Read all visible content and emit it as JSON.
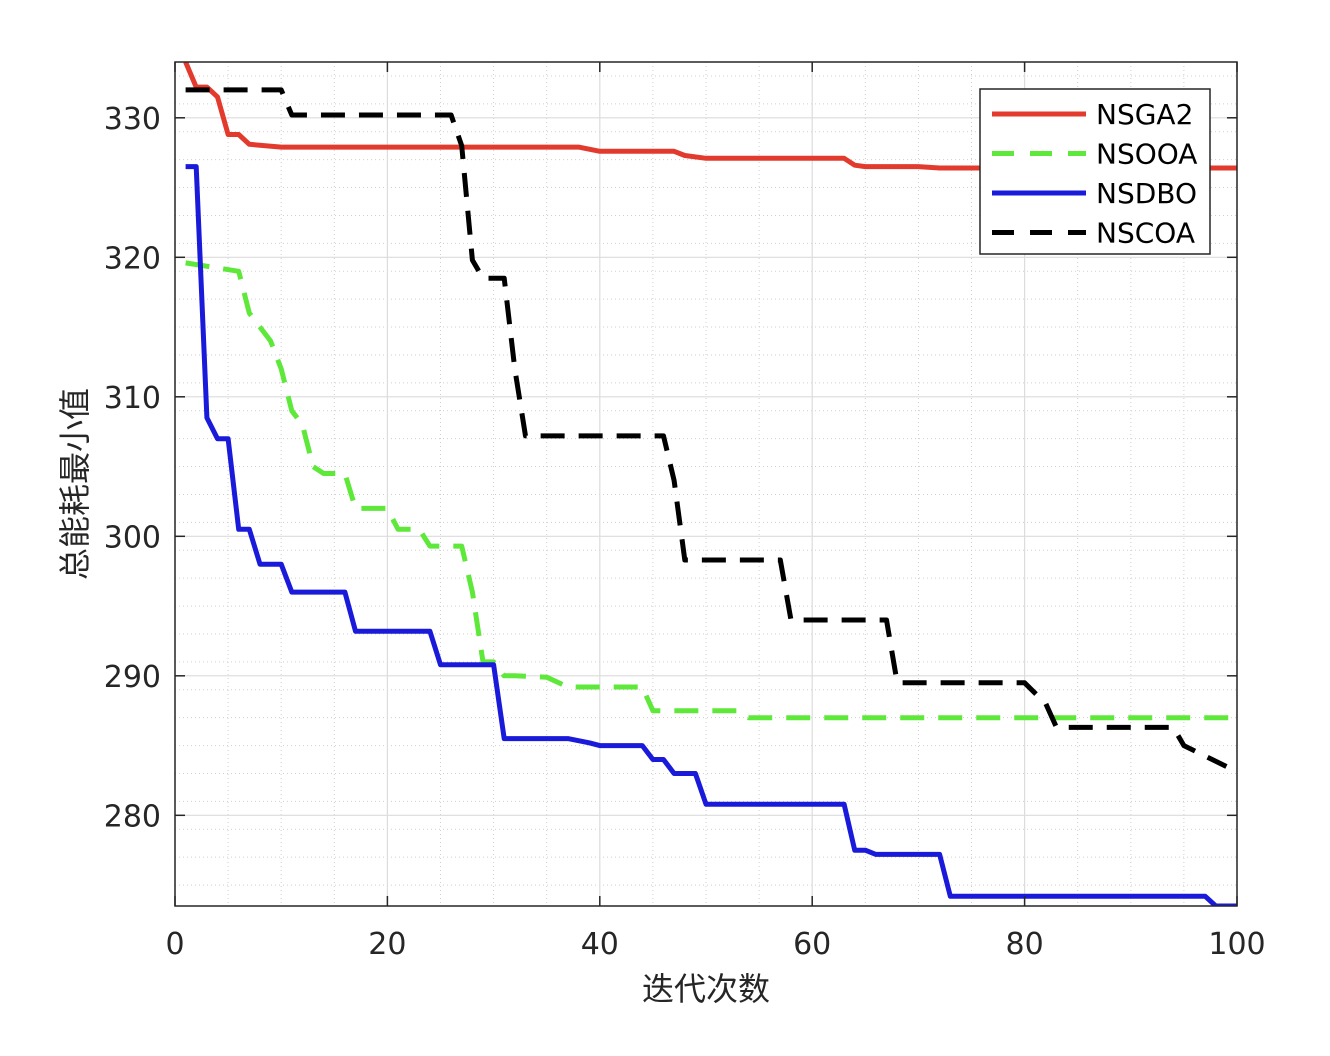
{
  "chart_data": {
    "type": "line",
    "title": "",
    "xlabel": "迭代次数",
    "ylabel": "总能耗最小值",
    "xlim": [
      0,
      100
    ],
    "ylim": [
      273.5,
      334
    ],
    "xticks": [
      0,
      20,
      40,
      60,
      80,
      100
    ],
    "yticks": [
      280,
      290,
      300,
      310,
      320,
      330
    ],
    "xtick_labels": [
      "0",
      "20",
      "40",
      "60",
      "80",
      "100"
    ],
    "ytick_labels": [
      "280",
      "290",
      "300",
      "310",
      "320",
      "330"
    ],
    "grid": true,
    "minor_grid": true,
    "legend": "top-right",
    "series": [
      {
        "name": "NSGA2",
        "color": "#e23b2e",
        "dash": "solid",
        "x": [
          1,
          2,
          3,
          4,
          5,
          6,
          7,
          10,
          20,
          38,
          40,
          47,
          48,
          50,
          63,
          64,
          65,
          70,
          72,
          100
        ],
        "y": [
          334,
          332.2,
          332.2,
          331.5,
          328.8,
          328.8,
          328.1,
          327.9,
          327.9,
          327.9,
          327.6,
          327.6,
          327.3,
          327.1,
          327.1,
          326.6,
          326.5,
          326.5,
          326.4,
          326.4
        ]
      },
      {
        "name": "NSOOA",
        "color": "#5ee83a",
        "dash": "dashed",
        "x": [
          1,
          6,
          7,
          8,
          9,
          10,
          11,
          12,
          13,
          14,
          16,
          17,
          20,
          21,
          23,
          24,
          27,
          28,
          29,
          30,
          31,
          32,
          35,
          37,
          44,
          45,
          47,
          53,
          54,
          56,
          100
        ],
        "y": [
          319.6,
          319,
          316,
          315,
          314,
          312,
          309,
          308,
          305,
          304.5,
          304.5,
          302,
          302,
          300.5,
          300.5,
          299.3,
          299.3,
          296,
          291,
          291,
          290,
          290,
          289.9,
          289.2,
          289.2,
          287.5,
          287.5,
          287.5,
          287,
          287,
          287
        ]
      },
      {
        "name": "NSDBO",
        "color": "#1a1adb",
        "dash": "solid",
        "x": [
          1,
          2,
          3,
          4,
          5,
          6,
          7,
          8,
          9,
          10,
          11,
          12,
          16,
          17,
          18,
          24,
          25,
          26,
          30,
          31,
          32,
          37,
          39,
          40,
          44,
          45,
          46,
          47,
          49,
          50,
          51,
          63,
          64,
          65,
          66,
          67,
          72,
          73,
          74,
          82,
          83,
          97,
          98,
          100
        ],
        "y": [
          326.5,
          326.5,
          308.5,
          307,
          307,
          300.5,
          300.5,
          298,
          298,
          298,
          296,
          296,
          296,
          293.2,
          293.2,
          293.2,
          290.8,
          290.8,
          290.8,
          285.5,
          285.5,
          285.5,
          285.2,
          285,
          285,
          284,
          284,
          283,
          283,
          280.8,
          280.8,
          280.8,
          277.5,
          277.5,
          277.2,
          277.2,
          277.2,
          274.2,
          274.2,
          274.2,
          274.2,
          274.2,
          273.5,
          273.5
        ]
      },
      {
        "name": "NSCOA",
        "color": "#000000",
        "dash": "dashed",
        "x": [
          1,
          2,
          9,
          10,
          11,
          26,
          27,
          28,
          29,
          30,
          31,
          32,
          33,
          45,
          46,
          47,
          48,
          56,
          57,
          58,
          66,
          67,
          68,
          79,
          80,
          82,
          83,
          94,
          95,
          99
        ],
        "y": [
          332,
          332,
          332,
          332,
          330.2,
          330.2,
          328,
          319.8,
          318.5,
          318.5,
          318.5,
          312,
          307.2,
          307.2,
          307.2,
          304,
          298.3,
          298.3,
          298.3,
          294,
          294,
          294,
          289.5,
          289.5,
          289.5,
          288,
          286.3,
          286.3,
          285,
          283.5
        ]
      }
    ]
  }
}
